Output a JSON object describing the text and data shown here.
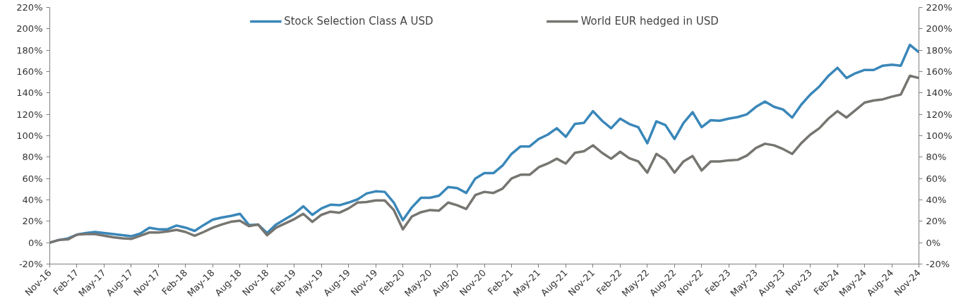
{
  "chart_data": {
    "type": "line",
    "x": [
      "2016-11",
      "2016-12",
      "2017-01",
      "2017-02",
      "2017-03",
      "2017-04",
      "2017-05",
      "2017-06",
      "2017-07",
      "2017-08",
      "2017-09",
      "2017-10",
      "2017-11",
      "2017-12",
      "2018-01",
      "2018-02",
      "2018-03",
      "2018-04",
      "2018-05",
      "2018-06",
      "2018-07",
      "2018-08",
      "2018-09",
      "2018-10",
      "2018-11",
      "2018-12",
      "2019-01",
      "2019-02",
      "2019-03",
      "2019-04",
      "2019-05",
      "2019-06",
      "2019-07",
      "2019-08",
      "2019-09",
      "2019-10",
      "2019-11",
      "2019-12",
      "2020-01",
      "2020-02",
      "2020-03",
      "2020-04",
      "2020-05",
      "2020-06",
      "2020-07",
      "2020-08",
      "2020-09",
      "2020-10",
      "2020-11",
      "2020-12",
      "2021-01",
      "2021-02",
      "2021-03",
      "2021-04",
      "2021-05",
      "2021-06",
      "2021-07",
      "2021-08",
      "2021-09",
      "2021-10",
      "2021-11",
      "2021-12",
      "2022-01",
      "2022-02",
      "2022-03",
      "2022-04",
      "2022-05",
      "2022-06",
      "2022-07",
      "2022-08",
      "2022-09",
      "2022-10",
      "2022-11",
      "2022-12",
      "2023-01",
      "2023-02",
      "2023-03",
      "2023-04",
      "2023-05",
      "2023-06",
      "2023-07",
      "2023-08",
      "2023-09",
      "2023-10",
      "2023-11",
      "2023-12",
      "2024-01",
      "2024-02",
      "2024-03",
      "2024-04",
      "2024-05",
      "2024-06",
      "2024-07",
      "2024-08",
      "2024-09",
      "2024-10",
      "2024-11"
    ],
    "series": [
      {
        "name": "Stock Selection Class A USD",
        "color": "#3a87b9",
        "values": [
          0,
          2.5,
          4,
          7.5,
          9,
          10,
          9,
          8,
          7,
          6,
          8.5,
          14,
          12.5,
          12.5,
          16,
          14,
          11,
          16.5,
          21.5,
          23.5,
          25,
          27,
          16.5,
          17,
          9,
          17,
          22,
          27,
          34,
          26,
          32,
          35.5,
          35,
          37.5,
          40.5,
          46,
          48,
          47.5,
          37.5,
          21,
          33,
          42,
          42,
          44,
          52,
          51,
          46.5,
          60,
          65,
          65,
          72,
          83,
          90,
          90,
          97,
          101,
          107,
          99,
          111,
          112,
          123,
          114,
          107,
          116,
          111,
          108,
          93,
          113.5,
          110,
          97,
          112,
          122,
          108,
          114.5,
          114,
          116,
          117.5,
          120,
          127,
          132,
          127,
          124.5,
          117,
          129,
          138.5,
          146,
          156,
          163.5,
          154,
          158.5,
          161.5,
          161.5,
          165.5,
          166.5,
          165.5,
          185,
          178
        ]
      },
      {
        "name": "World EUR hedged in USD",
        "color": "#777570",
        "values": [
          0,
          2.5,
          3,
          7.5,
          8,
          8,
          6.5,
          5,
          4,
          3.5,
          6.5,
          9.5,
          9.5,
          10.5,
          12,
          10,
          6.5,
          10,
          14,
          17,
          19.5,
          20.5,
          15.5,
          17,
          7,
          14,
          18,
          22,
          27,
          19.5,
          26,
          29,
          28,
          32,
          37.5,
          38,
          39.5,
          39.5,
          30.5,
          12.5,
          24.5,
          28.5,
          30.5,
          30,
          37.5,
          35,
          31.5,
          44.5,
          47.5,
          46.5,
          50.5,
          60,
          63.5,
          63.5,
          70.5,
          74,
          78.5,
          74,
          84,
          85.5,
          91,
          84,
          78.5,
          85,
          79,
          76,
          65.5,
          83,
          77.5,
          65.5,
          76,
          81,
          67.5,
          76,
          76,
          77,
          77.5,
          81.5,
          88.5,
          92.5,
          91,
          87.5,
          83,
          93,
          101,
          107,
          116,
          123,
          117,
          124,
          131,
          133,
          134,
          136.5,
          138.5,
          156,
          154
        ]
      }
    ],
    "xlim": [
      "2016-11",
      "2024-11"
    ],
    "xticks": [
      {
        "value": "2016-11",
        "label": "Nov-16"
      },
      {
        "value": "2017-02",
        "label": "Feb-17"
      },
      {
        "value": "2017-05",
        "label": "May-17"
      },
      {
        "value": "2017-08",
        "label": "Aug-17"
      },
      {
        "value": "2017-11",
        "label": "Nov-17"
      },
      {
        "value": "2018-02",
        "label": "Feb-18"
      },
      {
        "value": "2018-05",
        "label": "May-18"
      },
      {
        "value": "2018-08",
        "label": "Aug-18"
      },
      {
        "value": "2018-11",
        "label": "Nov-18"
      },
      {
        "value": "2019-02",
        "label": "Feb-19"
      },
      {
        "value": "2019-05",
        "label": "May-19"
      },
      {
        "value": "2019-08",
        "label": "Aug-19"
      },
      {
        "value": "2019-11",
        "label": "Nov-19"
      },
      {
        "value": "2020-02",
        "label": "Feb-20"
      },
      {
        "value": "2020-05",
        "label": "May-20"
      },
      {
        "value": "2020-08",
        "label": "Aug-20"
      },
      {
        "value": "2020-11",
        "label": "Nov-20"
      },
      {
        "value": "2021-02",
        "label": "Feb-21"
      },
      {
        "value": "2021-05",
        "label": "May-21"
      },
      {
        "value": "2021-08",
        "label": "Aug-21"
      },
      {
        "value": "2021-11",
        "label": "Nov-21"
      },
      {
        "value": "2022-02",
        "label": "Feb-22"
      },
      {
        "value": "2022-05",
        "label": "May-22"
      },
      {
        "value": "2022-08",
        "label": "Aug-22"
      },
      {
        "value": "2022-11",
        "label": "Nov-22"
      },
      {
        "value": "2023-02",
        "label": "Feb-23"
      },
      {
        "value": "2023-05",
        "label": "May-23"
      },
      {
        "value": "2023-08",
        "label": "Aug-23"
      },
      {
        "value": "2023-11",
        "label": "Nov-23"
      },
      {
        "value": "2024-02",
        "label": "Feb-24"
      },
      {
        "value": "2024-05",
        "label": "May-24"
      },
      {
        "value": "2024-08",
        "label": "Aug-24"
      },
      {
        "value": "2024-11",
        "label": "Nov-24"
      }
    ],
    "ylim": [
      -20,
      220
    ],
    "yticks": [
      {
        "value": -20,
        "label": "-20%"
      },
      {
        "value": 0,
        "label": "0%"
      },
      {
        "value": 20,
        "label": "20%"
      },
      {
        "value": 40,
        "label": "40%"
      },
      {
        "value": 60,
        "label": "60%"
      },
      {
        "value": 80,
        "label": "80%"
      },
      {
        "value": 100,
        "label": "100%"
      },
      {
        "value": 120,
        "label": "120%"
      },
      {
        "value": 140,
        "label": "140%"
      },
      {
        "value": 160,
        "label": "160%"
      },
      {
        "value": 180,
        "label": "180%"
      },
      {
        "value": 200,
        "label": "200%"
      },
      {
        "value": 220,
        "label": "220%"
      }
    ],
    "y2lim": [
      -20,
      220
    ],
    "y2ticks": [
      {
        "value": -20,
        "label": "-20%"
      },
      {
        "value": 0,
        "label": "0%"
      },
      {
        "value": 20,
        "label": "20%"
      },
      {
        "value": 40,
        "label": "40%"
      },
      {
        "value": 60,
        "label": "60%"
      },
      {
        "value": 80,
        "label": "80%"
      },
      {
        "value": 100,
        "label": "100%"
      },
      {
        "value": 120,
        "label": "120%"
      },
      {
        "value": 140,
        "label": "140%"
      },
      {
        "value": 160,
        "label": "160%"
      },
      {
        "value": 180,
        "label": "180%"
      },
      {
        "value": 200,
        "label": "200%"
      },
      {
        "value": 220,
        "label": "220%"
      }
    ],
    "grid": false,
    "legend": "top",
    "line_style": "solid"
  }
}
